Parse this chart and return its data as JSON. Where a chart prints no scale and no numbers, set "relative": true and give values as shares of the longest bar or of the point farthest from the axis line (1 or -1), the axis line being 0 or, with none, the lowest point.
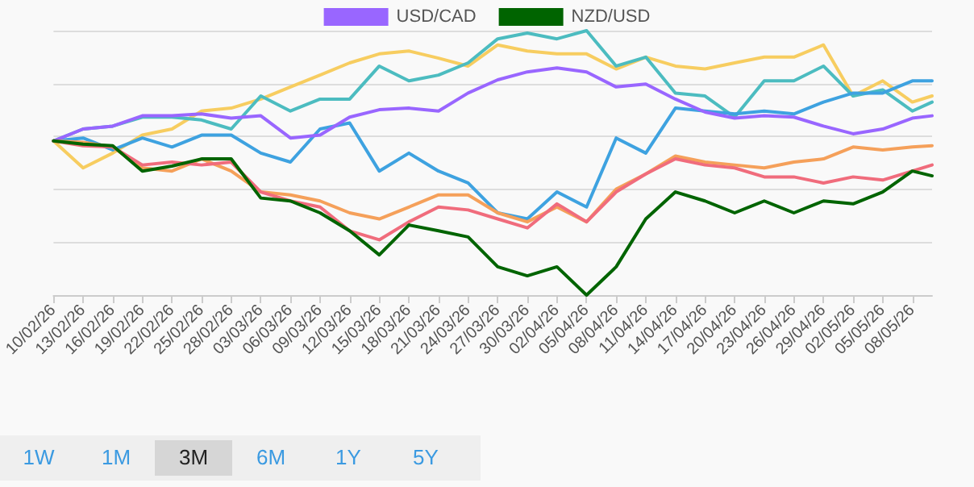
{
  "chart_data": {
    "type": "line",
    "relative": true,
    "grid": "y",
    "legend": "top",
    "marker": "none",
    "line_style": "solid",
    "x": [
      "--02-10",
      "--02-13",
      "--02-16",
      "--02-19",
      "--02-22",
      "--02-25",
      "--02-28",
      "--03-03",
      "--03-06",
      "--03-09",
      "--03-12",
      "--03-15",
      "--03-18",
      "--03-21",
      "--03-24",
      "--03-27",
      "--03-30",
      "--04-02",
      "--04-05",
      "--04-08",
      "--04-11",
      "--04-14",
      "--04-17",
      "--04-20",
      "--04-23",
      "--04-26",
      "--04-29",
      "--05-02",
      "--05-05",
      "--05-08",
      "--05-10"
    ],
    "xlim": [
      "--02-10",
      "--05-10"
    ],
    "xticks": [
      {
        "value": "--02-10",
        "label": "10/02/26"
      },
      {
        "value": "--02-13",
        "label": "13/02/26"
      },
      {
        "value": "--02-16",
        "label": "16/02/26"
      },
      {
        "value": "--02-19",
        "label": "19/02/26"
      },
      {
        "value": "--02-22",
        "label": "22/02/26"
      },
      {
        "value": "--02-25",
        "label": "25/02/26"
      },
      {
        "value": "--02-28",
        "label": "28/02/26"
      },
      {
        "value": "--03-03",
        "label": "03/03/26"
      },
      {
        "value": "--03-06",
        "label": "06/03/26"
      },
      {
        "value": "--03-09",
        "label": "09/03/26"
      },
      {
        "value": "--03-12",
        "label": "12/03/26"
      },
      {
        "value": "--03-15",
        "label": "15/03/26"
      },
      {
        "value": "--03-18",
        "label": "18/03/26"
      },
      {
        "value": "--03-21",
        "label": "21/03/26"
      },
      {
        "value": "--03-24",
        "label": "24/03/26"
      },
      {
        "value": "--03-27",
        "label": "27/03/26"
      },
      {
        "value": "--03-30",
        "label": "30/03/26"
      },
      {
        "value": "--04-02",
        "label": "02/04/26"
      },
      {
        "value": "--04-05",
        "label": "05/04/26"
      },
      {
        "value": "--04-08",
        "label": "08/04/26"
      },
      {
        "value": "--04-11",
        "label": "11/04/26"
      },
      {
        "value": "--04-14",
        "label": "14/04/26"
      },
      {
        "value": "--04-17",
        "label": "17/04/26"
      },
      {
        "value": "--04-20",
        "label": "20/04/26"
      },
      {
        "value": "--04-23",
        "label": "23/04/26"
      },
      {
        "value": "--04-26",
        "label": "26/04/26"
      },
      {
        "value": "--04-29",
        "label": "29/04/26"
      },
      {
        "value": "--05-02",
        "label": "02/05/26"
      },
      {
        "value": "--05-05",
        "label": "05/05/26"
      },
      {
        "value": "--05-08",
        "label": "08/05/26"
      }
    ],
    "annotations": [
      "1W",
      "1M",
      "3M",
      "6M",
      "1Y",
      "5Y"
    ],
    "series": [
      {
        "color": "#f7cd60",
        "values": [
          0.583,
          0.481,
          0.537,
          0.605,
          0.628,
          0.696,
          0.707,
          0.741,
          0.787,
          0.832,
          0.878,
          0.912,
          0.923,
          0.896,
          0.866,
          0.946,
          0.923,
          0.912,
          0.912,
          0.855,
          0.9,
          0.866,
          0.855,
          0.878,
          0.9,
          0.9,
          0.946,
          0.753,
          0.81,
          0.73,
          0.753
        ]
      },
      {
        "color": "#4cbcc0",
        "values": [
          0.583,
          0.628,
          0.639,
          0.673,
          0.673,
          0.662,
          0.628,
          0.753,
          0.696,
          0.741,
          0.741,
          0.866,
          0.81,
          0.832,
          0.878,
          0.969,
          0.991,
          0.969,
          1,
          0.866,
          0.9,
          0.764,
          0.753,
          0.673,
          0.81,
          0.81,
          0.866,
          0.753,
          0.776,
          0.696,
          0.73
        ]
      },
      {
        "color": "#3ea2e0",
        "values": [
          0.583,
          0.594,
          0.549,
          0.594,
          0.56,
          0.605,
          0.605,
          0.537,
          0.503,
          0.628,
          0.651,
          0.469,
          0.537,
          0.469,
          0.424,
          0.311,
          0.288,
          0.39,
          0.333,
          0.594,
          0.537,
          0.707,
          0.696,
          0.685,
          0.696,
          0.685,
          0.73,
          0.764,
          0.764,
          0.81,
          0.81
        ]
      },
      {
        "name": "USD/CAD",
        "color": "#9966ff",
        "values": [
          0.583,
          0.628,
          0.639,
          0.678,
          0.678,
          0.685,
          0.669,
          0.678,
          0.594,
          0.605,
          0.673,
          0.701,
          0.707,
          0.696,
          0.764,
          0.814,
          0.844,
          0.859,
          0.844,
          0.787,
          0.798,
          0.741,
          0.692,
          0.669,
          0.678,
          0.673,
          0.639,
          0.61,
          0.628,
          0.669,
          0.678
        ]
      },
      {
        "color": "#f5a05a",
        "values": [
          0.583,
          0.578,
          0.56,
          0.481,
          0.469,
          0.515,
          0.469,
          0.39,
          0.379,
          0.356,
          0.311,
          0.288,
          0.333,
          0.379,
          0.379,
          0.311,
          0.277,
          0.333,
          0.277,
          0.401,
          0.458,
          0.526,
          0.503,
          0.492,
          0.481,
          0.503,
          0.515,
          0.56,
          0.549,
          0.56,
          0.565
        ]
      },
      {
        "color": "#f06c7c",
        "values": [
          0.583,
          0.565,
          0.56,
          0.492,
          0.503,
          0.492,
          0.503,
          0.39,
          0.356,
          0.333,
          0.243,
          0.209,
          0.277,
          0.333,
          0.322,
          0.288,
          0.254,
          0.345,
          0.277,
          0.39,
          0.458,
          0.515,
          0.492,
          0.481,
          0.447,
          0.447,
          0.424,
          0.447,
          0.435,
          0.469,
          0.492
        ]
      },
      {
        "name": "NZD/USD",
        "color": "#006400",
        "values": [
          0.583,
          0.571,
          0.565,
          0.469,
          0.488,
          0.515,
          0.515,
          0.367,
          0.356,
          0.311,
          0.243,
          0.152,
          0.265,
          0.243,
          0.22,
          0.107,
          0.073,
          0.107,
          0,
          0.107,
          0.288,
          0.39,
          0.356,
          0.311,
          0.356,
          0.311,
          0.356,
          0.345,
          0.39,
          0.469,
          0.451
        ]
      }
    ]
  }
}
